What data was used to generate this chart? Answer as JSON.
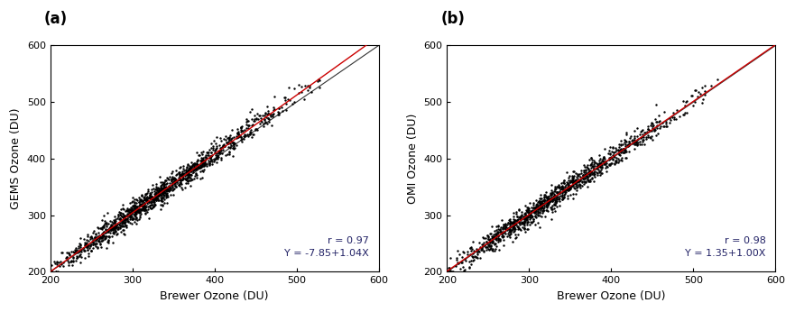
{
  "panel_a": {
    "label": "(a)",
    "xlabel": "Brewer Ozone (DU)",
    "ylabel": "GEMS Ozone (DU)",
    "xlim": [
      200,
      600
    ],
    "ylim": [
      200,
      600
    ],
    "xticks": [
      200,
      300,
      400,
      500,
      600
    ],
    "yticks": [
      200,
      300,
      400,
      500,
      600
    ],
    "fit_slope": 1.04,
    "fit_intercept": -7.85,
    "r_value": 0.97,
    "annotation": "r = 0.97\nY = -7.85+1.04X",
    "scatter_color": "#000000",
    "fit_line_color": "#cc0000",
    "oneto1_line_color": "#333333",
    "marker_size": 3,
    "n_points": 1300,
    "seed": 42
  },
  "panel_b": {
    "label": "(b)",
    "xlabel": "Brewer Ozone (DU)",
    "ylabel": "OMI Ozone (DU)",
    "xlim": [
      200,
      600
    ],
    "ylim": [
      200,
      600
    ],
    "xticks": [
      200,
      300,
      400,
      500,
      600
    ],
    "yticks": [
      200,
      300,
      400,
      500,
      600
    ],
    "fit_slope": 1.0,
    "fit_intercept": 1.35,
    "r_value": 0.98,
    "annotation": "r = 0.98\nY = 1.35+1.00X",
    "scatter_color": "#000000",
    "fit_line_color": "#cc0000",
    "oneto1_line_color": "#333333",
    "marker_size": 3,
    "n_points": 1100,
    "seed": 77
  },
  "fig_background": "#ffffff",
  "panel_background": "#ffffff",
  "label_color": "#000000",
  "annotation_color": "#222266",
  "font_size_label": 9,
  "font_size_tick": 8,
  "font_size_panel_label": 12,
  "font_size_annotation": 8
}
